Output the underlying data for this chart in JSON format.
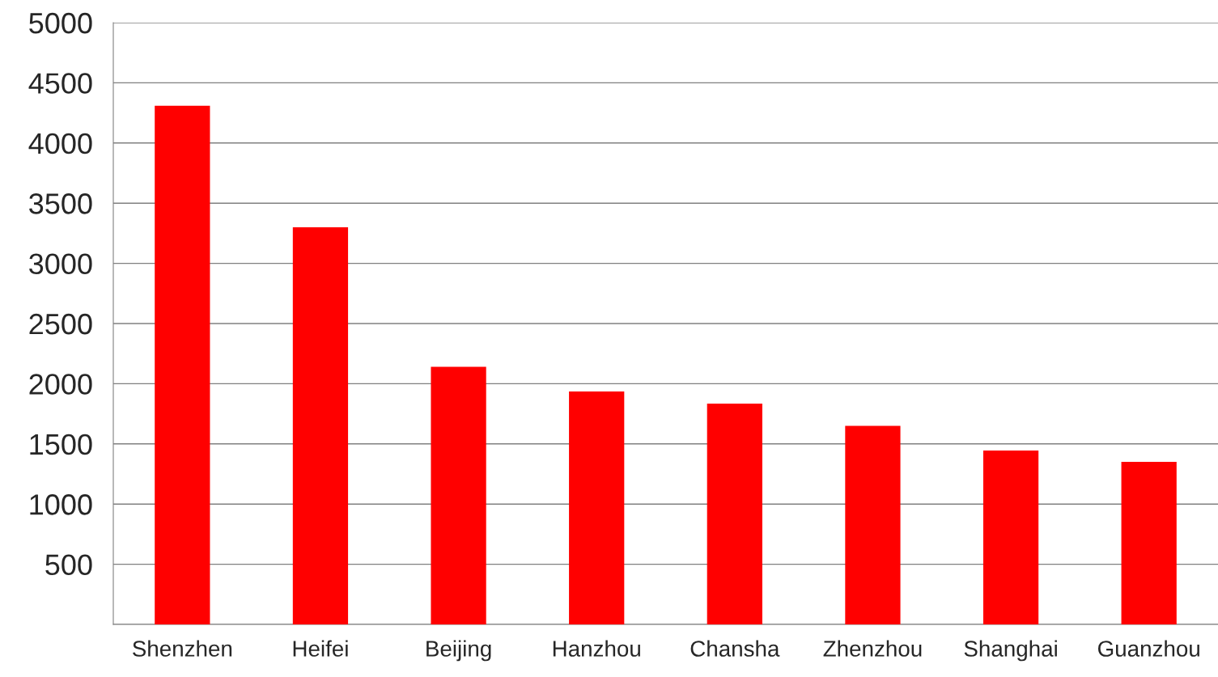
{
  "chart_data": {
    "type": "bar",
    "categories": [
      "Shenzhen",
      "Heifei",
      "Beijing",
      "Hanzhou",
      "Chansha",
      "Zhenzhou",
      "Shanghai",
      "Guanzhou"
    ],
    "values": [
      4310,
      3300,
      2140,
      1935,
      1835,
      1650,
      1445,
      1350
    ],
    "color": "#ff0000",
    "ylim": [
      0,
      5000
    ],
    "yticks": [
      {
        "value": 0,
        "label": null
      },
      500,
      1000,
      1500,
      2000,
      2500,
      3000,
      3500,
      4000,
      4500,
      5000
    ],
    "grid": "y"
  }
}
